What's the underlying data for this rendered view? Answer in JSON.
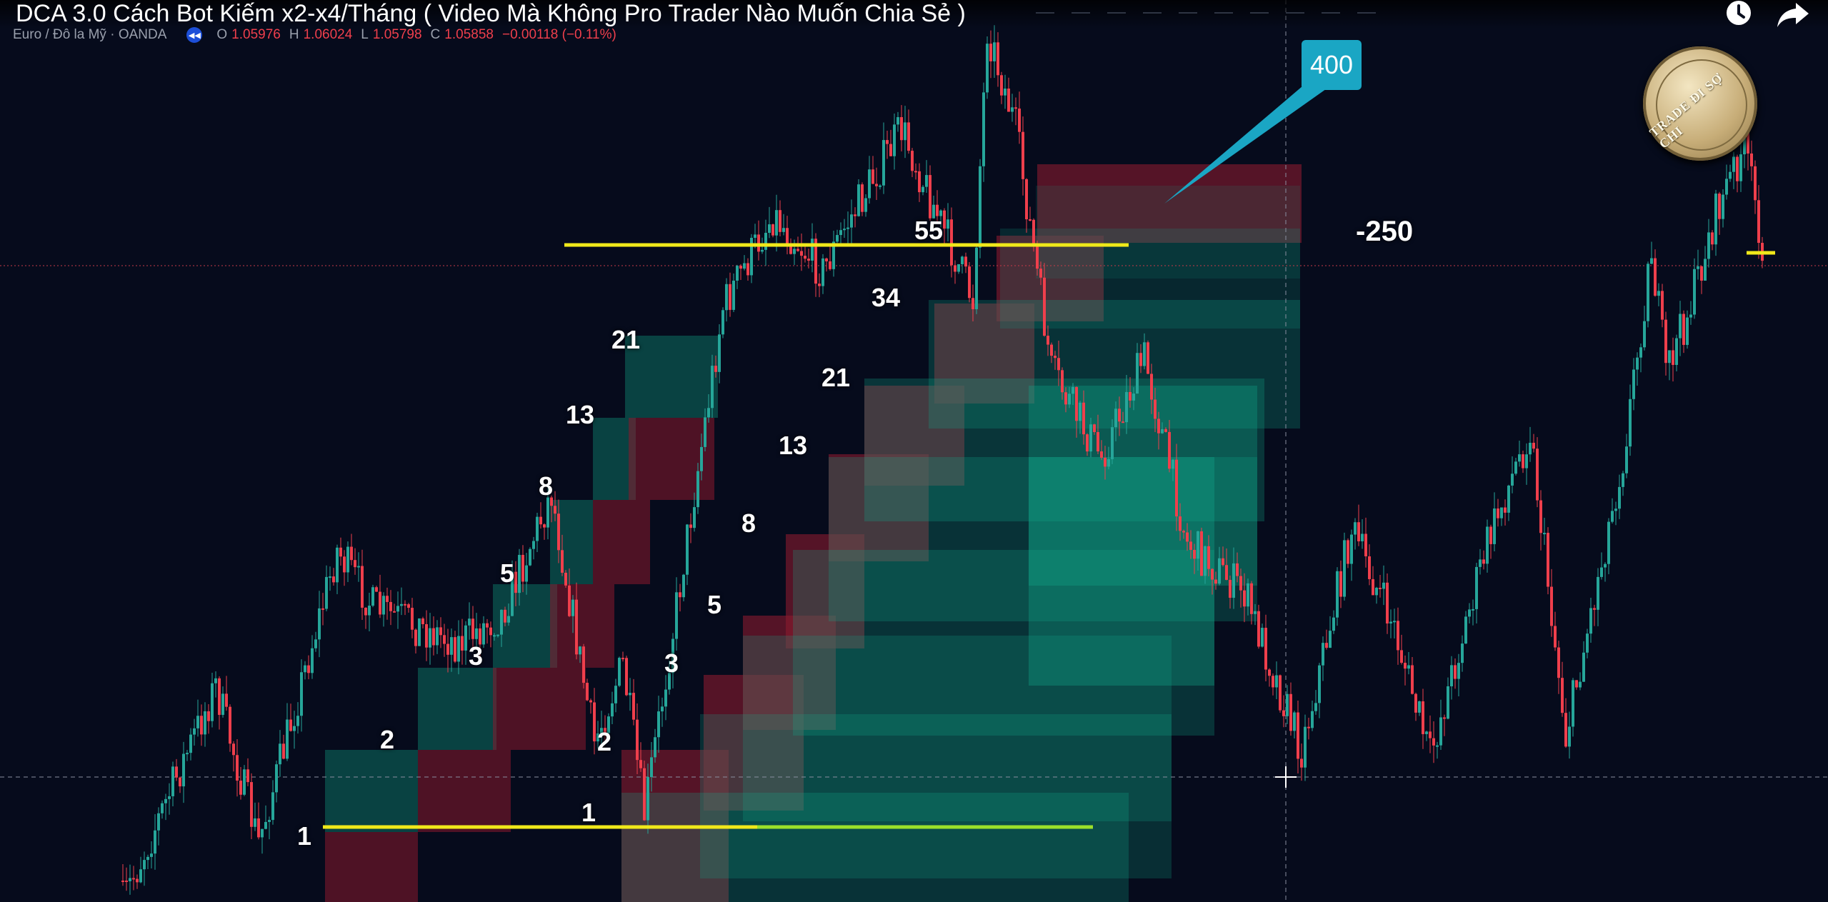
{
  "video": {
    "title": "DCA 3.0 Cách Bot Kiếm x2-x4/Tháng ( Video Mà Không Pro Trader Nào Muốn Chia Sẻ )",
    "watch_later_icon": "clock-icon",
    "share_icon": "share-arrow-icon"
  },
  "symbol": {
    "name": "Euro / Đô la Mỹ · OANDA",
    "ohlc": [
      {
        "key": "O",
        "value": "1.05976"
      },
      {
        "key": "H",
        "value": "1.06024"
      },
      {
        "key": "L",
        "value": "1.05798"
      },
      {
        "key": "C",
        "value": "1.05858"
      }
    ],
    "change": "−0.00118 (−0.11%)"
  },
  "logo": {
    "text": "TRADE ĐI SỢ CHI"
  },
  "annotations": {
    "callout_400": "400",
    "loss_250": "-250",
    "fib_left": [
      "1",
      "2",
      "3",
      "5",
      "8",
      "13",
      "21"
    ],
    "fib_right": [
      "1",
      "2",
      "3",
      "5",
      "8",
      "13",
      "21",
      "34",
      "55"
    ]
  },
  "colors": {
    "background": "#060b1c",
    "candle_up": "#26a69a",
    "candle_down": "#ef3f4c",
    "yellow_line": "#f0e81a",
    "green_line": "#9be02a",
    "callout": "#1aa6c4",
    "zone_red": "#8b1a2e",
    "zone_green": "#11a88a"
  }
}
